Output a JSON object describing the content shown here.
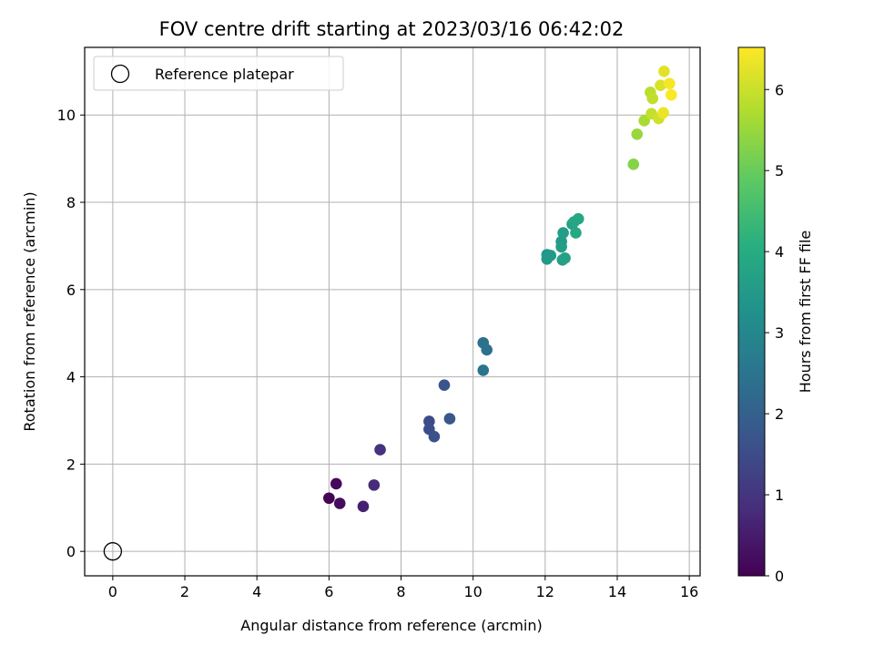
{
  "chart_data": {
    "type": "scatter",
    "title": "FOV centre drift starting at 2023/03/16 06:42:02",
    "xlabel": "Angular distance from reference (arcmin)",
    "ylabel": "Rotation from reference (arcmin)",
    "xlim": [
      -0.78,
      16.3
    ],
    "ylim": [
      -0.56,
      11.55
    ],
    "xticks": [
      0,
      2,
      4,
      6,
      8,
      10,
      12,
      14,
      16
    ],
    "yticks": [
      0,
      2,
      4,
      6,
      8,
      10
    ],
    "grid": true,
    "legend": {
      "label": "Reference platepar",
      "placement": "top-left"
    },
    "colorbar": {
      "label": "Hours from first FF file",
      "colormap": "viridis",
      "range": [
        0,
        6.52
      ],
      "ticks": [
        0,
        1,
        2,
        3,
        4,
        5,
        6
      ]
    },
    "reference_point": {
      "x": 0,
      "y": 0
    },
    "points": [
      {
        "x": 6.0,
        "y": 1.22,
        "c": 0.05
      },
      {
        "x": 6.2,
        "y": 1.55,
        "c": 0.15
      },
      {
        "x": 6.3,
        "y": 1.1,
        "c": 0.2
      },
      {
        "x": 6.95,
        "y": 1.03,
        "c": 0.6
      },
      {
        "x": 7.25,
        "y": 1.52,
        "c": 0.8
      },
      {
        "x": 7.42,
        "y": 2.33,
        "c": 0.95
      },
      {
        "x": 8.78,
        "y": 2.98,
        "c": 1.5
      },
      {
        "x": 8.78,
        "y": 2.8,
        "c": 1.55
      },
      {
        "x": 8.92,
        "y": 2.63,
        "c": 1.6
      },
      {
        "x": 9.2,
        "y": 3.81,
        "c": 1.7
      },
      {
        "x": 9.35,
        "y": 3.04,
        "c": 1.75
      },
      {
        "x": 10.28,
        "y": 4.78,
        "c": 2.4
      },
      {
        "x": 10.38,
        "y": 4.62,
        "c": 2.45
      },
      {
        "x": 10.28,
        "y": 4.15,
        "c": 2.5
      },
      {
        "x": 12.05,
        "y": 6.8,
        "c": 3.4
      },
      {
        "x": 12.05,
        "y": 6.7,
        "c": 3.45
      },
      {
        "x": 12.15,
        "y": 6.78,
        "c": 3.5
      },
      {
        "x": 12.45,
        "y": 7.1,
        "c": 3.55
      },
      {
        "x": 12.5,
        "y": 7.3,
        "c": 3.6
      },
      {
        "x": 12.45,
        "y": 6.98,
        "c": 3.6
      },
      {
        "x": 12.48,
        "y": 6.68,
        "c": 3.65
      },
      {
        "x": 12.55,
        "y": 6.72,
        "c": 3.7
      },
      {
        "x": 12.75,
        "y": 7.5,
        "c": 3.75
      },
      {
        "x": 12.8,
        "y": 7.55,
        "c": 3.8
      },
      {
        "x": 12.92,
        "y": 7.62,
        "c": 3.85
      },
      {
        "x": 12.85,
        "y": 7.3,
        "c": 3.9
      },
      {
        "x": 14.45,
        "y": 8.87,
        "c": 5.3
      },
      {
        "x": 14.55,
        "y": 9.56,
        "c": 5.5
      },
      {
        "x": 14.75,
        "y": 9.87,
        "c": 5.65
      },
      {
        "x": 14.92,
        "y": 10.52,
        "c": 5.85
      },
      {
        "x": 14.98,
        "y": 10.38,
        "c": 5.9
      },
      {
        "x": 14.95,
        "y": 10.03,
        "c": 5.95
      },
      {
        "x": 15.15,
        "y": 9.92,
        "c": 6.05
      },
      {
        "x": 15.2,
        "y": 10.68,
        "c": 6.15
      },
      {
        "x": 15.3,
        "y": 11.0,
        "c": 6.25
      },
      {
        "x": 15.28,
        "y": 10.05,
        "c": 6.35
      },
      {
        "x": 15.45,
        "y": 10.72,
        "c": 6.45
      },
      {
        "x": 15.5,
        "y": 10.46,
        "c": 6.5
      }
    ]
  }
}
